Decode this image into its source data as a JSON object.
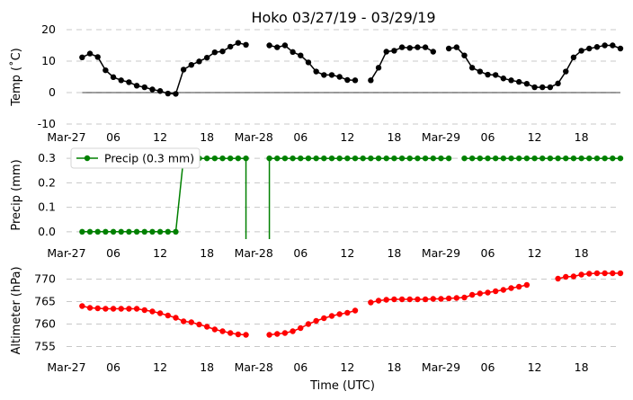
{
  "chart_data": {
    "title": "Hoko 03/27/19 - 03/29/19",
    "xlabel": "Time (UTC)",
    "x_tick_labels": [
      "Mar-27",
      "06",
      "12",
      "18",
      "Mar-28",
      "06",
      "12",
      "18",
      "Mar-29",
      "06",
      "12",
      "18"
    ],
    "x_tick_hours": [
      0,
      6,
      12,
      18,
      24,
      30,
      36,
      42,
      48,
      54,
      60,
      66
    ],
    "xlim_hours": [
      0,
      71
    ],
    "time_step_hours": 1,
    "panels": [
      {
        "id": "temp",
        "type": "line",
        "ylabel": "Temp ($^\\circ$C)",
        "ylabel_display": "Temp (˚C)",
        "ylim": [
          -10,
          20
        ],
        "yticks": [
          -10,
          0,
          10,
          20
        ],
        "grid": true,
        "zero_line": true,
        "color": "#000000",
        "legend": null,
        "series": [
          {
            "start_hour": 2,
            "values": [
              11.2,
              12.4,
              11.3,
              7.1,
              4.9,
              3.9,
              3.3,
              2.2,
              1.7,
              1.0,
              0.5,
              -0.3,
              -0.4,
              7.3,
              8.8,
              9.9,
              11.1,
              12.8,
              13.1,
              14.6,
              15.8,
              15.2
            ]
          },
          {
            "start_hour": 26,
            "values": [
              15.0,
              14.4,
              15.0,
              12.9,
              11.8,
              9.6,
              6.7,
              5.6,
              5.6,
              5.0,
              4.0,
              3.9
            ]
          },
          {
            "start_hour": 39,
            "values": [
              3.9,
              7.9,
              13.0,
              13.3,
              14.4,
              14.2,
              14.4,
              14.4,
              13.0,
              null,
              14.0,
              14.4,
              11.8,
              7.9,
              6.7,
              5.7,
              5.6,
              4.5,
              3.9,
              3.4,
              2.8,
              1.7,
              1.7,
              1.7,
              2.9,
              6.7,
              11.2,
              13.3,
              14.0,
              14.5,
              15.0,
              15.0,
              14.0
            ]
          }
        ]
      },
      {
        "id": "precip",
        "type": "line",
        "ylabel": "Precip (mm)",
        "ylim": [
          -0.03,
          0.33
        ],
        "yticks": [
          0.0,
          0.1,
          0.2,
          0.3
        ],
        "grid": true,
        "color": "#008000",
        "legend": {
          "label": "Precip (0.3 mm)",
          "placement": "upper-left"
        },
        "series": [
          {
            "start_hour": 2,
            "values": [
              0.0,
              0.0,
              0.0,
              0.0,
              0.0,
              0.0,
              0.0,
              0.0,
              0.0,
              0.0,
              0.0,
              0.0,
              0.0,
              0.3,
              0.3,
              0.3,
              0.3,
              0.3,
              0.3,
              0.3,
              0.3,
              0.3
            ]
          },
          {
            "start_hour": 26,
            "values": [
              0.3,
              0.3,
              0.3,
              0.3,
              0.3,
              0.3,
              0.3,
              0.3,
              0.3,
              0.3,
              0.3,
              0.3,
              0.3,
              0.3,
              0.3,
              0.3,
              0.3,
              0.3,
              0.3,
              0.3,
              0.3,
              0.3,
              0.3,
              0.3,
              null,
              0.3,
              0.3,
              0.3,
              0.3,
              0.3,
              0.3,
              0.3,
              0.3,
              0.3,
              0.3,
              0.3,
              0.3,
              0.3,
              0.3,
              0.3,
              0.3,
              0.3,
              0.3,
              0.3,
              0.3,
              0.3
            ]
          }
        ],
        "gap_drops": [
          23,
          26
        ]
      },
      {
        "id": "altimeter",
        "type": "line",
        "ylabel": "Altimeter (hPa)",
        "ylim": [
          753.5,
          772.5
        ],
        "yticks": [
          755,
          760,
          765,
          770
        ],
        "grid": true,
        "color": "#ff0000",
        "legend": null,
        "series": [
          {
            "start_hour": 2,
            "values": [
              764.0,
              763.6,
              763.5,
              763.4,
              763.4,
              763.4,
              763.4,
              763.4,
              763.1,
              762.8,
              762.4,
              761.9,
              761.4,
              760.6,
              760.4,
              759.9,
              759.4,
              758.8,
              758.4,
              758.0,
              757.7,
              757.6
            ]
          },
          {
            "start_hour": 26,
            "values": [
              757.6,
              757.8,
              758.0,
              758.4,
              759.1,
              760.0,
              760.7,
              761.3,
              761.8,
              762.2,
              762.5,
              763.0
            ]
          },
          {
            "start_hour": 39,
            "values": [
              764.8,
              765.2,
              765.4,
              765.5,
              765.5,
              765.5,
              765.5,
              765.5,
              765.6,
              765.6,
              765.7,
              765.8,
              765.9,
              766.5,
              766.8,
              767.0,
              767.3,
              767.6,
              768.0,
              768.3,
              768.7
            ]
          },
          {
            "start_hour": 63,
            "values": [
              770.1,
              770.5,
              770.6,
              771.0,
              771.2,
              771.3,
              771.3,
              771.3,
              771.3
            ]
          }
        ]
      }
    ]
  }
}
